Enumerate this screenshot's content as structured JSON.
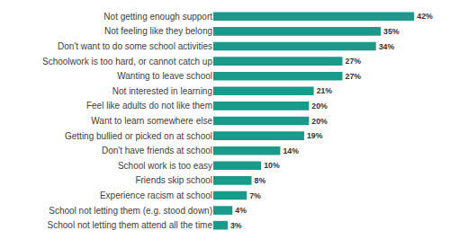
{
  "chart_data": {
    "type": "bar",
    "orientation": "horizontal",
    "categories": [
      "Not getting enough support",
      "Not feeling like they belong",
      "Don't want to do some school activities",
      "Schoolwork is too hard, or cannot catch up",
      "Wanting to leave school",
      "Not interested in learning",
      "Feel like adults do not like them",
      "Want to learn somewhere else",
      "Getting bullied or picked on at school",
      "Don't have friends at school",
      "School work is too easy",
      "Friends skip school",
      "Experience racism at school",
      "School not letting them (e.g. stood down)",
      "School not letting them attend all the time"
    ],
    "values": [
      42,
      35,
      34,
      27,
      27,
      21,
      20,
      20,
      19,
      14,
      10,
      8,
      7,
      4,
      3
    ],
    "value_labels": [
      "42%",
      "35%",
      "34%",
      "27%",
      "27%",
      "21%",
      "20%",
      "20%",
      "19%",
      "14%",
      "10%",
      "8%",
      "7%",
      "4%",
      "3%"
    ],
    "color": "#1a9a8a",
    "data_labels": true,
    "tick_labels": "y",
    "grid": false
  }
}
